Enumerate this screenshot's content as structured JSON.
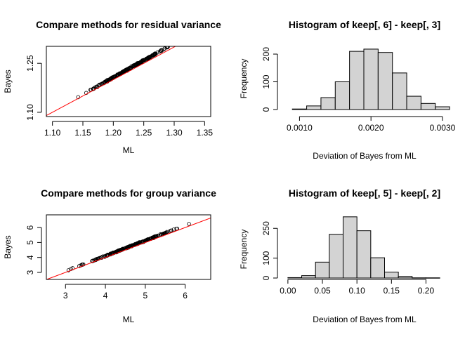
{
  "chart_data": [
    {
      "type": "scatter",
      "title": "Compare methods for residual variance",
      "xlabel": "ML",
      "ylabel": "Bayes",
      "xlim": [
        1.09,
        1.36
      ],
      "ylim": [
        1.087,
        1.302
      ],
      "xticks": [
        1.1,
        1.15,
        1.2,
        1.25,
        1.3,
        1.35
      ],
      "xtick_labels": [
        "1.10",
        "1.15",
        "1.20",
        "1.25",
        "1.30",
        "1.35"
      ],
      "yticks": [
        1.1,
        1.25
      ],
      "ytick_labels": [
        "1.10",
        "1.25"
      ],
      "series": [
        {
          "color": "#000000",
          "x_range": [
            1.1,
            1.355
          ],
          "y_fit": {
            "slope": 1.05,
            "intercept": -0.0535
          },
          "n_points": 240
        }
      ],
      "reference_line": {
        "slope": 1,
        "intercept": 0,
        "color": "#ff0000"
      }
    },
    {
      "type": "bar",
      "title": "Histogram of keep[, 6] - keep[, 3]",
      "xlabel": "Deviation of Bayes from ML",
      "ylabel": "Frequency",
      "xlim": [
        0.00077,
        0.00303
      ],
      "ylim": [
        0,
        228
      ],
      "xticks": [
        0.001,
        0.002,
        0.003
      ],
      "xtick_labels": [
        "0.0010",
        "0.0020",
        "0.0030"
      ],
      "yticks": [
        0,
        100,
        200
      ],
      "ytick_labels": [
        "0",
        "100",
        "200"
      ],
      "bin_edges": [
        0.0009,
        0.0011,
        0.0013,
        0.0015,
        0.0017,
        0.0019,
        0.0021,
        0.0023,
        0.0025,
        0.0027,
        0.0029,
        0.0031
      ],
      "values": [
        2,
        13,
        43,
        100,
        210,
        218,
        206,
        132,
        48,
        22,
        10
      ],
      "bar_color": "#d3d3d3"
    },
    {
      "type": "scatter",
      "title": "Compare methods for group variance",
      "xlabel": "ML",
      "ylabel": "Bayes",
      "xlim": [
        2.52,
        6.64
      ],
      "ylim": [
        2.53,
        6.85
      ],
      "xticks": [
        3,
        4,
        5,
        6
      ],
      "xtick_labels": [
        "3",
        "4",
        "5",
        "6"
      ],
      "yticks": [
        3,
        4,
        5,
        6
      ],
      "ytick_labels": [
        "3",
        "4",
        "5",
        "6"
      ],
      "series": [
        {
          "color": "#000000",
          "x_range": [
            2.6,
            6.55
          ],
          "y_fit": {
            "slope": 1.025,
            "intercept": 0.0
          },
          "n_points": 240
        }
      ],
      "reference_line": {
        "slope": 1,
        "intercept": 0,
        "color": "#ff0000"
      }
    },
    {
      "type": "bar",
      "title": "Histogram of keep[, 5] - keep[, 2]",
      "xlabel": "Deviation of Bayes from ML",
      "ylabel": "Frequency",
      "xlim": [
        -0.007,
        0.227
      ],
      "ylim": [
        0,
        318
      ],
      "xticks": [
        0.0,
        0.05,
        0.1,
        0.15,
        0.2
      ],
      "xtick_labels": [
        "0.00",
        "0.05",
        "0.10",
        "0.15",
        "0.20"
      ],
      "yticks": [
        0,
        100,
        250
      ],
      "ytick_labels": [
        "0",
        "100",
        "250"
      ],
      "bin_edges": [
        0.0,
        0.02,
        0.04,
        0.06,
        0.08,
        0.1,
        0.12,
        0.14,
        0.16,
        0.18,
        0.2,
        0.22
      ],
      "values": [
        2,
        12,
        80,
        220,
        308,
        238,
        102,
        30,
        8,
        1,
        1
      ],
      "bar_color": "#d3d3d3"
    }
  ]
}
